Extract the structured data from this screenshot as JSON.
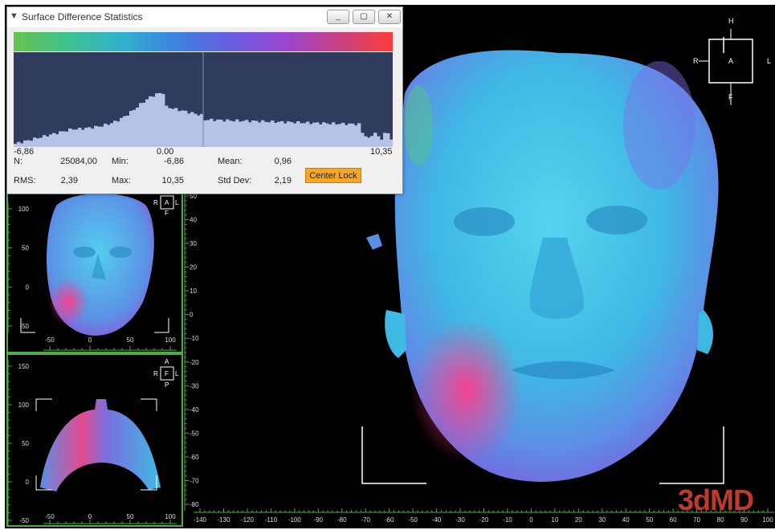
{
  "window": {
    "title": "Surface Difference Statistics",
    "buttons": {
      "minimize": "_",
      "maximize": "▢",
      "close": "✕"
    }
  },
  "histogram": {
    "min_label": "-6,86",
    "zero_label": "0.00",
    "max_label": "10,35"
  },
  "stats": {
    "n_label": "N:",
    "n_value": "25084,00",
    "min_label": "Min:",
    "min_value": "-6,86",
    "mean_label": "Mean:",
    "mean_value": "0,96",
    "rms_label": "RMS:",
    "rms_value": "2,39",
    "max_label": "Max:",
    "max_value": "10,35",
    "std_label": "Std Dev:",
    "std_value": "2,19",
    "center_lock": "Center Lock"
  },
  "orientation": {
    "main": {
      "top": "H",
      "left": "R",
      "center": "A",
      "right": "L",
      "bottom": "F"
    },
    "front": {
      "left": "R",
      "center": "A",
      "right": "L",
      "bottom": "F"
    },
    "bottom_view": {
      "top": "A",
      "left": "R",
      "center": "F",
      "right": "L",
      "bottom": "P"
    }
  },
  "rulers": {
    "front_left_ticks": [
      "100",
      "50",
      "0",
      "-50"
    ],
    "front_bottom_ticks": [
      "-50",
      "0",
      "50",
      "100"
    ],
    "bottom_left_ticks": [
      "150",
      "100",
      "50",
      "0",
      "-50"
    ],
    "bottom_bottom_ticks": [
      "-50",
      "0",
      "50",
      "100"
    ],
    "vertical_ticks": [
      "50",
      "40",
      "30",
      "20",
      "10",
      "0",
      "-10",
      "-20",
      "-30",
      "-40",
      "-50",
      "-60",
      "-70",
      "-80"
    ],
    "horizontal_ticks": [
      "-140",
      "-130",
      "-120",
      "-110",
      "-100",
      "-90",
      "-80",
      "-70",
      "-60",
      "-50",
      "-40",
      "-30",
      "-20",
      "-10",
      "0",
      "10",
      "20",
      "30",
      "40",
      "50",
      "60",
      "70",
      "80",
      "90",
      "100"
    ]
  },
  "watermark": "3dMD",
  "colors": {
    "view_border": "#4cae3f",
    "histogram_bg": "#2f3c5d",
    "histogram_bar": "#b7c3e6",
    "button_accent": "#f5a623"
  }
}
